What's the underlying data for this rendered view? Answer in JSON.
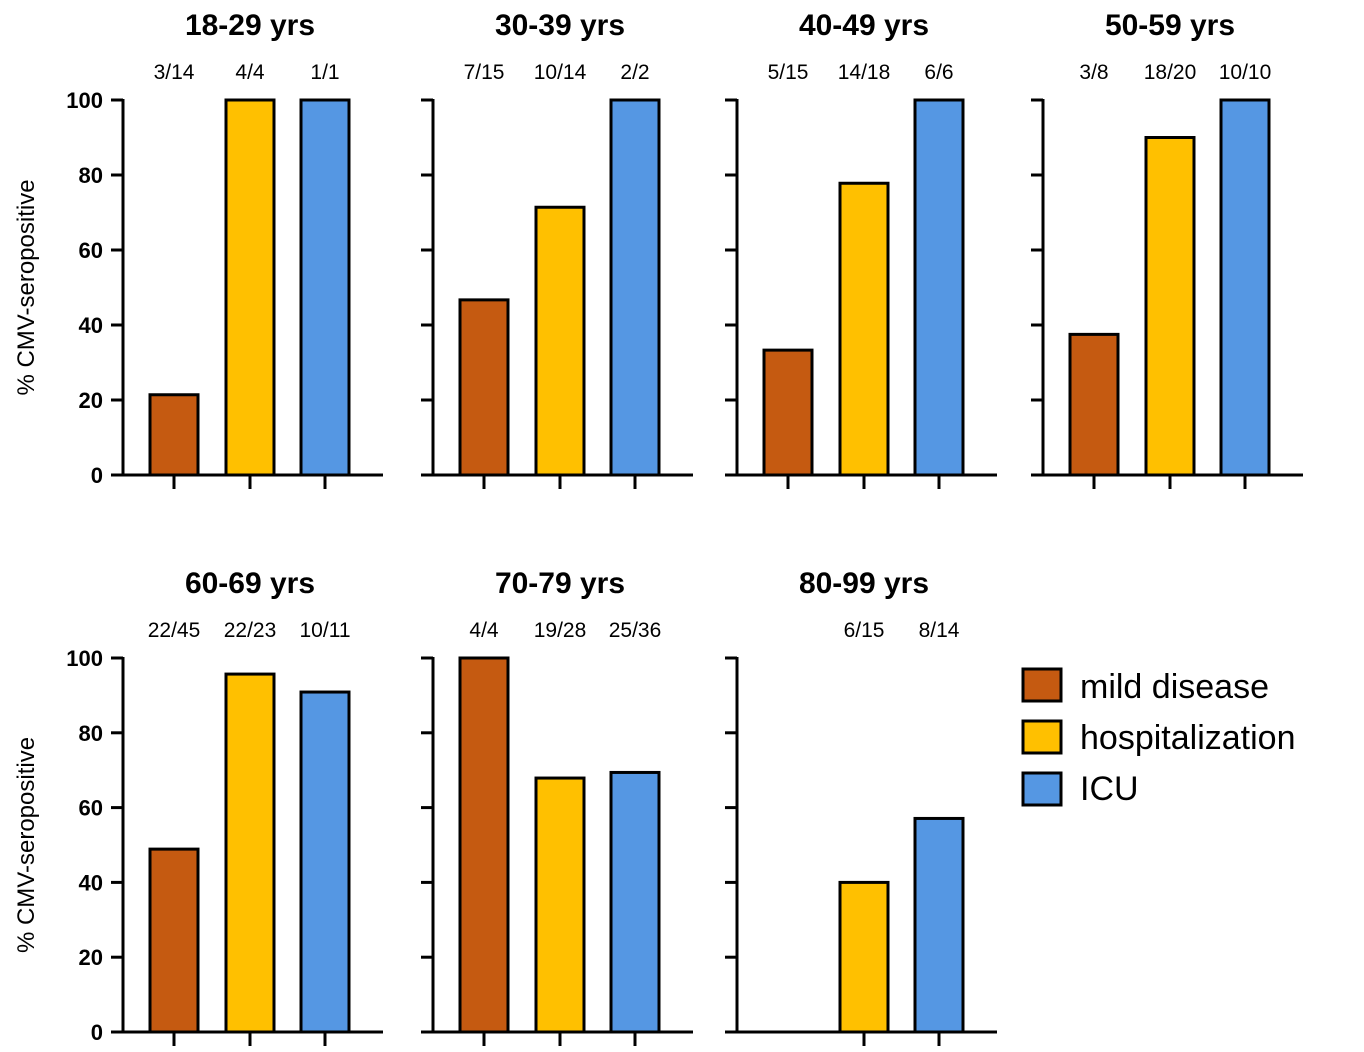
{
  "colors": {
    "mild disease": "#c55a11",
    "hospitalization": "#ffc000",
    "ICU": "#5597e3"
  },
  "legend": {
    "items": [
      {
        "label": "mild disease",
        "color": "#c55a11"
      },
      {
        "label": "hospitalization",
        "color": "#ffc000"
      },
      {
        "label": "ICU",
        "color": "#5597e3"
      }
    ]
  },
  "chart_data": [
    {
      "type": "bar",
      "title": "18-29 yrs",
      "ylabel": "% CMV-seropositive",
      "ylim": [
        0,
        100
      ],
      "yticks": [
        0,
        20,
        40,
        60,
        80,
        100
      ],
      "categories": [
        "mild disease",
        "hospitalization",
        "ICU"
      ],
      "values": [
        21.4,
        100,
        100
      ],
      "labels": [
        "3/14",
        "4/4",
        "1/1"
      ]
    },
    {
      "type": "bar",
      "title": "30-39 yrs",
      "ylim": [
        0,
        100
      ],
      "categories": [
        "mild disease",
        "hospitalization",
        "ICU"
      ],
      "values": [
        46.7,
        71.4,
        100
      ],
      "labels": [
        "7/15",
        "10/14",
        "2/2"
      ]
    },
    {
      "type": "bar",
      "title": "40-49 yrs",
      "ylim": [
        0,
        100
      ],
      "categories": [
        "mild disease",
        "hospitalization",
        "ICU"
      ],
      "values": [
        33.3,
        77.8,
        100
      ],
      "labels": [
        "5/15",
        "14/18",
        "6/6"
      ]
    },
    {
      "type": "bar",
      "title": "50-59 yrs",
      "ylim": [
        0,
        100
      ],
      "categories": [
        "mild disease",
        "hospitalization",
        "ICU"
      ],
      "values": [
        37.5,
        90,
        100
      ],
      "labels": [
        "3/8",
        "18/20",
        "10/10"
      ]
    },
    {
      "type": "bar",
      "title": "60-69 yrs",
      "ylabel": "% CMV-seropositive",
      "ylim": [
        0,
        100
      ],
      "yticks": [
        0,
        20,
        40,
        60,
        80,
        100
      ],
      "categories": [
        "mild disease",
        "hospitalization",
        "ICU"
      ],
      "values": [
        48.9,
        95.7,
        90.9
      ],
      "labels": [
        "22/45",
        "22/23",
        "10/11"
      ]
    },
    {
      "type": "bar",
      "title": "70-79 yrs",
      "ylim": [
        0,
        100
      ],
      "categories": [
        "mild disease",
        "hospitalization",
        "ICU"
      ],
      "values": [
        100,
        67.9,
        69.4
      ],
      "labels": [
        "4/4",
        "19/28",
        "25/36"
      ]
    },
    {
      "type": "bar",
      "title": "80-99 yrs",
      "ylim": [
        0,
        100
      ],
      "categories": [
        "hospitalization",
        "ICU"
      ],
      "values": [
        40,
        57.1
      ],
      "labels": [
        "6/15",
        "8/14"
      ]
    }
  ]
}
